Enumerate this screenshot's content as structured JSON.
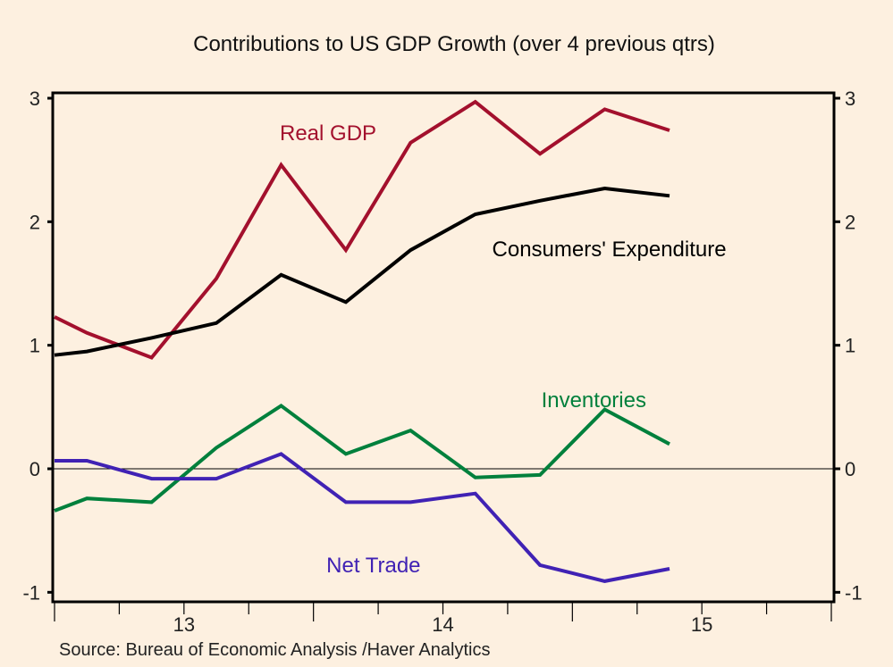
{
  "chart_data": {
    "type": "line",
    "title": "Contributions to US GDP Growth (over 4 previous qtrs)",
    "xlabel": "",
    "ylabel": "",
    "source": "Source:  Bureau of Economic Analysis /Haver Analytics",
    "xlim": [
      2013.0,
      2016.0
    ],
    "ylim": [
      -1.08,
      3.08
    ],
    "grid": false,
    "zero_line": true,
    "y_ticks": [
      3,
      2,
      1,
      0,
      -1
    ],
    "y_tick_labels": [
      "3",
      "2",
      "1",
      "0",
      "-1"
    ],
    "x_year_ticks": [
      2013,
      2014,
      2015,
      2016
    ],
    "x_quarter_ticks": [
      2013.25,
      2013.5,
      2013.75,
      2014.25,
      2014.5,
      2014.75,
      2015.25,
      2015.5,
      2015.75
    ],
    "x_tick_labels": [
      {
        "label": "13",
        "x": 2013.5
      },
      {
        "label": "14",
        "x": 2014.5
      },
      {
        "label": "15",
        "x": 2015.5
      }
    ],
    "x": [
      2013.0,
      2013.125,
      2013.375,
      2013.625,
      2013.875,
      2014.125,
      2014.375,
      2014.625,
      2014.875,
      2015.125,
      2015.375
    ],
    "series": [
      {
        "name": "Real GDP",
        "color": "#A3102D",
        "values": [
          1.23,
          1.1,
          0.9,
          1.54,
          2.46,
          1.77,
          2.64,
          2.97,
          2.55,
          2.91,
          2.74
        ],
        "label_pos": {
          "x": 2013.87,
          "y": 2.66
        }
      },
      {
        "name": "Consumers' Expenditure",
        "color": "#000000",
        "values": [
          0.92,
          0.95,
          1.06,
          1.18,
          1.57,
          1.35,
          1.77,
          2.06,
          2.17,
          2.27,
          2.21
        ],
        "label_pos": {
          "x": 2014.69,
          "y": 1.72
        }
      },
      {
        "name": "Inventories",
        "color": "#00803C",
        "values": [
          -0.34,
          -0.24,
          -0.27,
          0.17,
          0.51,
          0.12,
          0.31,
          -0.07,
          -0.05,
          0.48,
          0.2
        ],
        "label_pos": {
          "x": 2014.88,
          "y": 0.5
        }
      },
      {
        "name": "Net Trade",
        "color": "#4022B4",
        "values": [
          0.065,
          0.065,
          -0.08,
          -0.08,
          0.12,
          -0.27,
          -0.27,
          -0.2,
          -0.78,
          -0.91,
          -0.81
        ],
        "label_pos": {
          "x": 2014.05,
          "y": -0.84
        }
      }
    ]
  }
}
